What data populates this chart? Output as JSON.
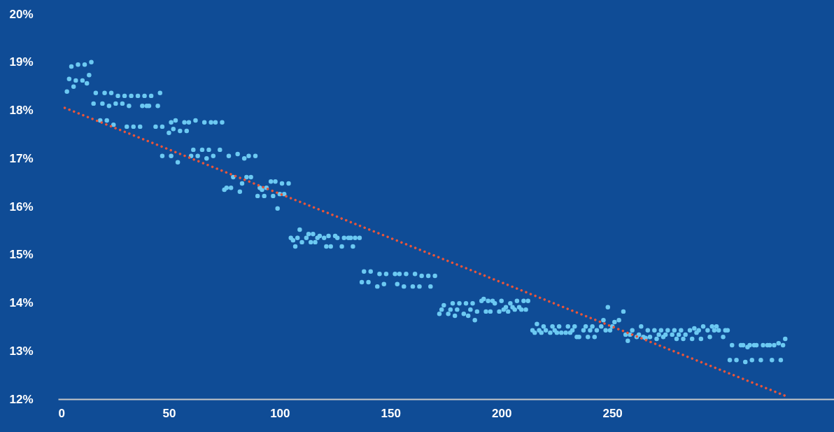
{
  "chart_data": {
    "type": "scatter",
    "xlim": [
      0,
      350
    ],
    "xticks": [
      0,
      50,
      100,
      150,
      200,
      250
    ],
    "ylim": [
      12,
      20
    ],
    "yticks": [
      {
        "value": 12,
        "label": "12%"
      },
      {
        "value": 13,
        "label": "13%"
      },
      {
        "value": 14,
        "label": "14%"
      },
      {
        "value": 15,
        "label": "15%"
      },
      {
        "value": 16,
        "label": "16%"
      },
      {
        "value": 17,
        "label": "17%"
      },
      {
        "value": 18,
        "label": "18%"
      },
      {
        "value": 19,
        "label": "19%"
      },
      {
        "value": 20,
        "label": "20%"
      }
    ],
    "grid": false,
    "series": [
      {
        "color": "#6cc9f2",
        "marker": "circle",
        "x": [
          4,
          5,
          6,
          7,
          8,
          9,
          11,
          12,
          13,
          14,
          15,
          16,
          17,
          19,
          20,
          21,
          22,
          23,
          24,
          25,
          26,
          27,
          29,
          30,
          31,
          32,
          33,
          34,
          36,
          37,
          38,
          39,
          40,
          41,
          42,
          44,
          45,
          46,
          47,
          47,
          50,
          51,
          51,
          52,
          53,
          54,
          55,
          57,
          58,
          59,
          60,
          61,
          62,
          63,
          65,
          66,
          67,
          68,
          69,
          70,
          71,
          73,
          74,
          75,
          76,
          77,
          78,
          79,
          81,
          82,
          83,
          84,
          85,
          86,
          87,
          89,
          90,
          91,
          92,
          93,
          94,
          96,
          97,
          98,
          99,
          100,
          101,
          102,
          104,
          105,
          106,
          107,
          108,
          109,
          110,
          112,
          113,
          114,
          115,
          116,
          117,
          118,
          120,
          121,
          122,
          123,
          125,
          126,
          128,
          129,
          131,
          132,
          133,
          134,
          136,
          137,
          138,
          140,
          141,
          144,
          145,
          147,
          148,
          152,
          153,
          154,
          156,
          157,
          160,
          161,
          163,
          164,
          167,
          168,
          170,
          172,
          173,
          174,
          176,
          177,
          178,
          179,
          180,
          181,
          183,
          184,
          185,
          186,
          187,
          188,
          189,
          191,
          192,
          193,
          194,
          195,
          196,
          197,
          199,
          200,
          201,
          202,
          203,
          204,
          205,
          206,
          207,
          208,
          209,
          210,
          211,
          212,
          214,
          215,
          216,
          217,
          218,
          219,
          220,
          222,
          223,
          224,
          225,
          226,
          227,
          229,
          230,
          231,
          232,
          233,
          234,
          235,
          237,
          238,
          239,
          240,
          241,
          242,
          243,
          245,
          246,
          247,
          248,
          249,
          250,
          251,
          253,
          255,
          256,
          257,
          258,
          259,
          261,
          262,
          263,
          264,
          265,
          266,
          267,
          269,
          270,
          271,
          272,
          273,
          274,
          275,
          277,
          278,
          279,
          280,
          281,
          282,
          283,
          285,
          286,
          287,
          288,
          289,
          290,
          291,
          293,
          294,
          295,
          296,
          297,
          298,
          300,
          301,
          302,
          303,
          304,
          306,
          308,
          309,
          310,
          311,
          312,
          313,
          314,
          315,
          317,
          318,
          320,
          321,
          322,
          323,
          325,
          326,
          327,
          328
        ],
        "values": [
          18.39,
          18.65,
          18.91,
          18.49,
          18.62,
          18.95,
          18.62,
          18.95,
          18.56,
          18.73,
          19.0,
          18.14,
          18.36,
          17.79,
          18.14,
          18.36,
          17.79,
          18.09,
          18.36,
          17.7,
          18.14,
          18.3,
          18.14,
          18.3,
          17.66,
          18.09,
          18.3,
          17.66,
          18.3,
          17.66,
          18.09,
          18.3,
          18.09,
          18.09,
          18.3,
          17.66,
          18.09,
          18.36,
          17.66,
          17.05,
          17.53,
          17.75,
          17.05,
          17.61,
          17.79,
          16.92,
          17.57,
          17.75,
          17.57,
          17.75,
          17.05,
          17.18,
          17.79,
          17.05,
          17.18,
          17.75,
          17.0,
          17.18,
          17.75,
          17.05,
          17.75,
          17.18,
          17.75,
          16.35,
          16.39,
          17.05,
          16.39,
          16.61,
          17.09,
          16.31,
          16.48,
          17.0,
          16.61,
          17.05,
          16.61,
          17.05,
          16.22,
          16.39,
          16.35,
          16.22,
          16.39,
          16.52,
          16.22,
          16.52,
          15.96,
          16.26,
          16.48,
          16.26,
          16.48,
          15.35,
          15.3,
          15.17,
          15.35,
          15.52,
          15.26,
          15.35,
          15.43,
          15.26,
          15.43,
          15.26,
          15.35,
          15.39,
          15.35,
          15.17,
          15.39,
          15.17,
          15.39,
          15.35,
          15.17,
          15.35,
          15.35,
          15.35,
          15.17,
          15.35,
          15.35,
          14.43,
          14.65,
          14.43,
          14.65,
          14.34,
          14.6,
          14.39,
          14.6,
          14.6,
          14.39,
          14.6,
          14.34,
          14.6,
          14.34,
          14.6,
          14.34,
          14.56,
          14.56,
          14.34,
          14.56,
          13.77,
          13.86,
          13.95,
          13.77,
          13.86,
          13.99,
          13.73,
          13.86,
          13.99,
          13.77,
          13.99,
          13.73,
          13.86,
          13.99,
          13.64,
          13.82,
          14.04,
          14.08,
          13.82,
          14.04,
          13.82,
          14.04,
          13.99,
          13.82,
          14.04,
          13.86,
          13.91,
          13.82,
          13.99,
          13.91,
          13.86,
          14.04,
          13.91,
          13.86,
          14.04,
          13.86,
          14.04,
          13.43,
          13.38,
          13.56,
          13.43,
          13.38,
          13.51,
          13.43,
          13.38,
          13.51,
          13.43,
          13.38,
          13.51,
          13.38,
          13.38,
          13.51,
          13.38,
          13.43,
          13.51,
          13.29,
          13.29,
          13.43,
          13.51,
          13.29,
          13.43,
          13.51,
          13.29,
          13.43,
          13.51,
          13.64,
          13.43,
          13.91,
          13.43,
          13.51,
          13.6,
          13.64,
          13.82,
          13.34,
          13.21,
          13.34,
          13.43,
          13.29,
          13.34,
          13.51,
          13.29,
          13.27,
          13.43,
          13.29,
          13.43,
          13.25,
          13.34,
          13.43,
          13.29,
          13.34,
          13.43,
          13.34,
          13.43,
          13.25,
          13.34,
          13.43,
          13.25,
          13.34,
          13.43,
          13.25,
          13.47,
          13.38,
          13.43,
          13.25,
          13.51,
          13.43,
          13.29,
          13.51,
          13.43,
          13.51,
          13.43,
          13.29,
          13.43,
          13.43,
          12.81,
          13.12,
          12.81,
          13.12,
          13.12,
          12.77,
          13.08,
          13.12,
          12.81,
          13.12,
          13.12,
          12.81,
          13.12,
          13.12,
          13.12,
          12.81,
          13.12,
          13.16,
          12.81,
          13.12,
          13.25
        ]
      },
      {
        "type": "line",
        "color": "#e8553a",
        "line_style": "dotted",
        "x": [
          3,
          329
        ],
        "values": [
          18.05,
          12.05
        ]
      }
    ]
  }
}
